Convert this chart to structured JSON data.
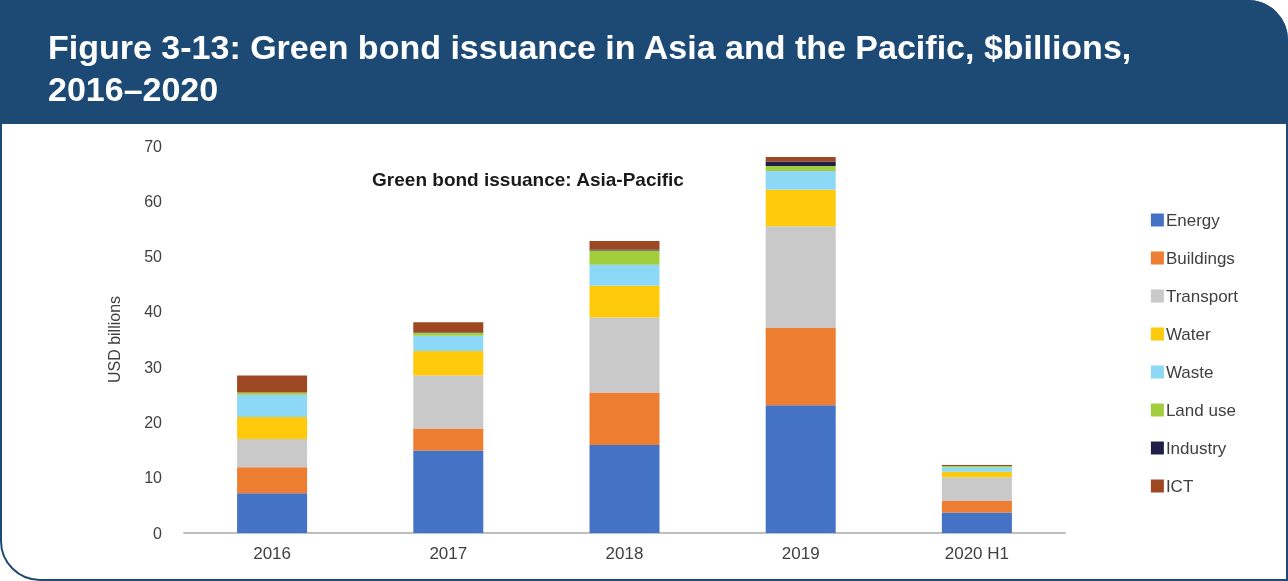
{
  "chart_data": {
    "type": "bar",
    "stacked": true,
    "title": "Figure 3-13: Green bond issuance in Asia and the Pacific, $billions, 2016–2020",
    "subtitle": "Green bond issuance: Asia-Pacific",
    "ylabel": "USD billions",
    "categories": [
      "2016",
      "2017",
      "2018",
      "2019",
      "2020 H1"
    ],
    "series": [
      {
        "name": "Energy",
        "color": "#4472c4",
        "values": [
          7.2,
          14.9,
          15.9,
          23.1,
          3.7
        ]
      },
      {
        "name": "Buildings",
        "color": "#ed7d31",
        "values": [
          4.7,
          4.0,
          9.5,
          14.0,
          2.1
        ]
      },
      {
        "name": "Transport",
        "color": "#c9c9c9",
        "values": [
          5.1,
          9.6,
          13.6,
          18.4,
          4.3
        ]
      },
      {
        "name": "Water",
        "color": "#ffc90c",
        "values": [
          4.0,
          4.4,
          5.7,
          6.6,
          1.0
        ]
      },
      {
        "name": "Waste",
        "color": "#8dd7f7",
        "values": [
          4.0,
          2.8,
          3.8,
          3.4,
          0.8
        ]
      },
      {
        "name": "Land use",
        "color": "#a2cd3c",
        "values": [
          0.4,
          0.5,
          2.6,
          0.9,
          0.2
        ]
      },
      {
        "name": "Industry",
        "color": "#1f1f47",
        "values": [
          0,
          0.1,
          0.2,
          0.8,
          0
        ]
      },
      {
        "name": "ICT",
        "color": "#9e4823",
        "values": [
          3.1,
          1.8,
          1.5,
          0.8,
          0.2
        ]
      }
    ],
    "ylim": [
      0,
      70
    ],
    "yticks": [
      0,
      10,
      20,
      30,
      40,
      50,
      60,
      70
    ],
    "grid": false,
    "legend": "right"
  }
}
